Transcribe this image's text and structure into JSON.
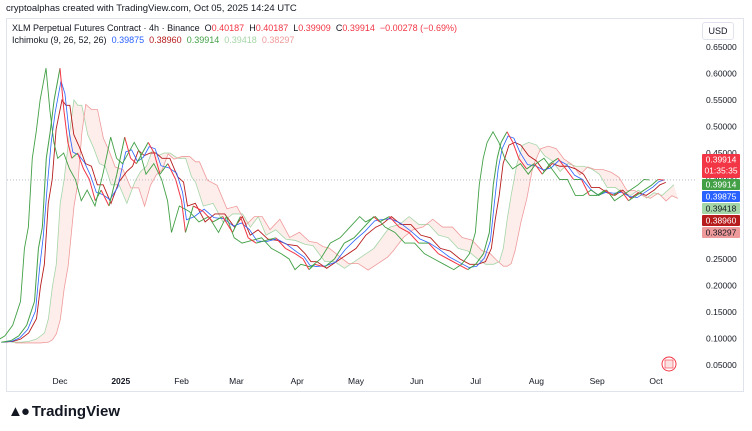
{
  "caption": "cryptoalphas created with TradingView.com, Oct 05, 2025 14:24 UTC",
  "legend": {
    "symbol": "XLM Perpetual Futures Contract · 4h · Binance",
    "o_label": "O",
    "o_value": "0.40187",
    "h_label": "H",
    "h_value": "0.40187",
    "l_label": "L",
    "l_value": "0.39909",
    "c_label": "C",
    "c_value": "0.39914",
    "change": "−0.00278 (−0.69%)",
    "indicator": "Ichimoku (9, 26, 52, 26)",
    "ind_values": [
      "0.39875",
      "0.38960",
      "0.39914",
      "0.39418",
      "0.38297"
    ]
  },
  "currency": "USD",
  "brand": "TradingView",
  "colors": {
    "price_up": "#43a047",
    "price_down": "#f23645",
    "conversion": "#2962ff",
    "base": "#b71c1c",
    "lagging": "#43a047",
    "span_a": "#a5d6a7",
    "span_b": "#ef9a9a",
    "cloud_bull": "#e8f5e9",
    "cloud_bear": "#fdecea"
  },
  "chart_data": {
    "type": "line",
    "title": "XLM Perpetual Futures Contract · 4h · Binance",
    "x_ticks": [
      "Dec",
      "2025",
      "Feb",
      "Mar",
      "Apr",
      "May",
      "Jun",
      "Jul",
      "Aug",
      "Sep",
      "Oct"
    ],
    "y_ticks": [
      "0.65000",
      "0.60000",
      "0.55000",
      "0.50000",
      "0.45000",
      "0.40000",
      "0.35000",
      "0.30000",
      "0.25000",
      "0.20000",
      "0.15000",
      "0.10000",
      "0.05000"
    ],
    "ylim": [
      0.03,
      0.67
    ],
    "x_range": [
      "2024-11-01",
      "2025-10-13"
    ],
    "series": [
      {
        "name": "XLM",
        "x": [
          "2024-11-01",
          "2024-11-06",
          "2024-11-10",
          "2024-11-14",
          "2024-11-18",
          "2024-11-20",
          "2024-11-22",
          "2024-11-24",
          "2024-11-26",
          "2024-11-28",
          "2024-12-01",
          "2024-12-03",
          "2024-12-05",
          "2024-12-07",
          "2024-12-10",
          "2024-12-13",
          "2024-12-16",
          "2024-12-19",
          "2024-12-22",
          "2024-12-26",
          "2024-12-30",
          "2025-01-03",
          "2025-01-06",
          "2025-01-09",
          "2025-01-12",
          "2025-01-15",
          "2025-01-18",
          "2025-01-21",
          "2025-01-25",
          "2025-01-29",
          "2025-02-01",
          "2025-02-03",
          "2025-02-07",
          "2025-02-12",
          "2025-02-17",
          "2025-02-22",
          "2025-02-27",
          "2025-03-03",
          "2025-03-07",
          "2025-03-11",
          "2025-03-16",
          "2025-03-21",
          "2025-03-26",
          "2025-03-31",
          "2025-04-04",
          "2025-04-07",
          "2025-04-10",
          "2025-04-15",
          "2025-04-20",
          "2025-04-25",
          "2025-04-30",
          "2025-05-05",
          "2025-05-10",
          "2025-05-13",
          "2025-05-18",
          "2025-05-23",
          "2025-05-28",
          "2025-06-02",
          "2025-06-07",
          "2025-06-12",
          "2025-06-17",
          "2025-06-22",
          "2025-06-27",
          "2025-07-01",
          "2025-07-05",
          "2025-07-08",
          "2025-07-10",
          "2025-07-12",
          "2025-07-14",
          "2025-07-17",
          "2025-07-20",
          "2025-07-23",
          "2025-07-27",
          "2025-07-31",
          "2025-08-04",
          "2025-08-08",
          "2025-08-12",
          "2025-08-16",
          "2025-08-20",
          "2025-08-24",
          "2025-08-28",
          "2025-09-01",
          "2025-09-05",
          "2025-09-09",
          "2025-09-13",
          "2025-09-17",
          "2025-09-21",
          "2025-09-25",
          "2025-09-29",
          "2025-10-02",
          "2025-10-05"
        ],
        "y": [
          0.093,
          0.096,
          0.105,
          0.125,
          0.17,
          0.27,
          0.31,
          0.44,
          0.49,
          0.55,
          0.61,
          0.53,
          0.47,
          0.44,
          0.45,
          0.42,
          0.4,
          0.36,
          0.38,
          0.35,
          0.41,
          0.48,
          0.44,
          0.43,
          0.45,
          0.47,
          0.45,
          0.41,
          0.43,
          0.4,
          0.36,
          0.3,
          0.35,
          0.34,
          0.32,
          0.33,
          0.3,
          0.33,
          0.29,
          0.28,
          0.285,
          0.29,
          0.27,
          0.26,
          0.25,
          0.23,
          0.24,
          0.235,
          0.25,
          0.28,
          0.29,
          0.31,
          0.33,
          0.32,
          0.33,
          0.31,
          0.3,
          0.28,
          0.28,
          0.26,
          0.25,
          0.24,
          0.23,
          0.24,
          0.26,
          0.3,
          0.39,
          0.44,
          0.47,
          0.49,
          0.47,
          0.44,
          0.42,
          0.43,
          0.41,
          0.43,
          0.44,
          0.42,
          0.4,
          0.4,
          0.37,
          0.37,
          0.38,
          0.37,
          0.38,
          0.36,
          0.37,
          0.38,
          0.39,
          0.4,
          0.39914
        ]
      }
    ],
    "last_price": "0.39914",
    "countdown": "01:35:35"
  }
}
